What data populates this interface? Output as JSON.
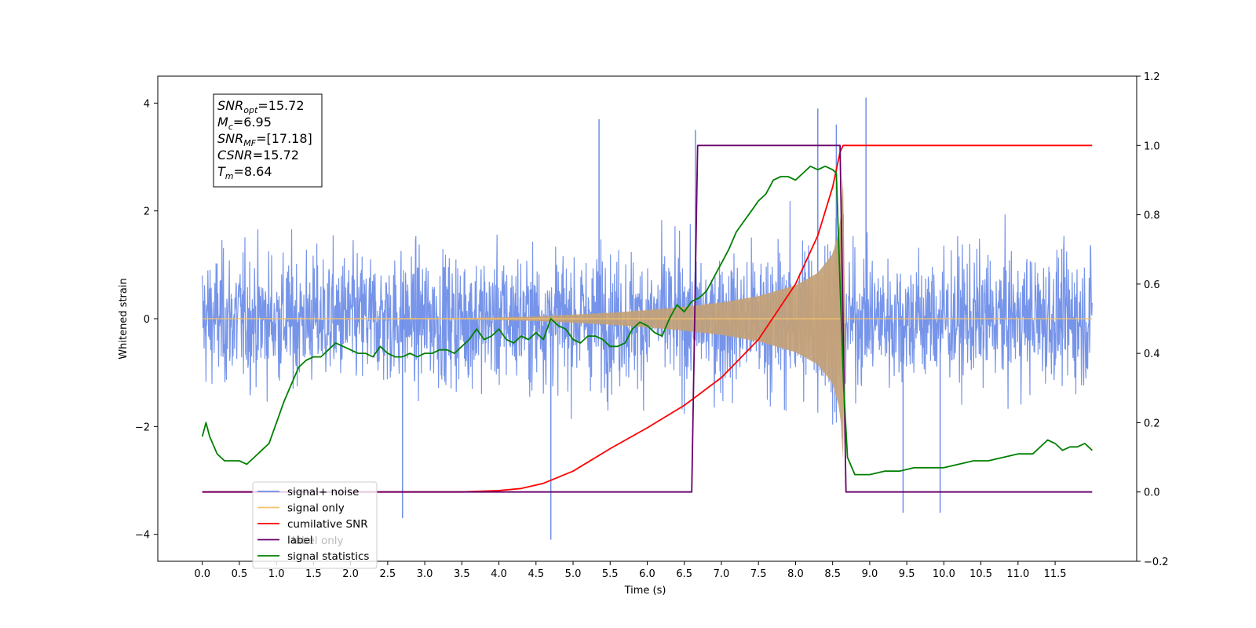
{
  "chart_data": {
    "type": "line",
    "title": "",
    "xlabel": "Time (s)",
    "ylabel": "Whitened strain",
    "ylabel_right": "",
    "xlim": [
      -0.6,
      12.6
    ],
    "ylim": [
      -4.5,
      4.5
    ],
    "ylim_right": [
      -0.2,
      1.2
    ],
    "grid": false,
    "x_ticks": [
      "0.0",
      "0.5",
      "1.0",
      "1.5",
      "2.0",
      "2.5",
      "3.0",
      "3.5",
      "4.0",
      "4.5",
      "5.0",
      "5.5",
      "6.0",
      "6.5",
      "7.0",
      "7.5",
      "8.0",
      "8.5",
      "9.0",
      "9.5",
      "10.0",
      "10.5",
      "11.0",
      "11.5"
    ],
    "y_ticks_left": [
      "−4",
      "−2",
      "0",
      "2",
      "4"
    ],
    "y_ticks_right": [
      "−0.2",
      "0.0",
      "0.2",
      "0.4",
      "0.6",
      "0.8",
      "1.0",
      "1.2"
    ],
    "stats_box": {
      "lines": [
        {
          "base": "SNR",
          "sub": "opt",
          "value": "=15.72"
        },
        {
          "base": "M",
          "sub": "c",
          "value": "=6.95"
        },
        {
          "base": "SNR",
          "sub": "MF",
          "value": "=[17.18]"
        },
        {
          "base": "CSNR",
          "sub": "",
          "value": "=15.72"
        },
        {
          "base": "T",
          "sub": "m",
          "value": "=8.64"
        }
      ]
    },
    "legend": {
      "placement": "lower-left",
      "entries": [
        {
          "label": "signal+ noise",
          "color": "#6f8ee8"
        },
        {
          "label": "signal only",
          "color": "#f5c26b"
        },
        {
          "label": "cumilative SNR",
          "color": "#ff0000"
        },
        {
          "label": "label",
          "color": "#6a006a"
        },
        {
          "label": "signal statistics",
          "color": "#008000"
        }
      ],
      "ghost_text": "label only"
    },
    "series": [
      {
        "name": "signal+ noise",
        "axis": "left",
        "color": "#6f8ee8",
        "x_range": [
          0,
          12
        ],
        "noise_band": [
          -2.6,
          2.6
        ],
        "extremes": [
          {
            "x": 2.7,
            "y": -3.7
          },
          {
            "x": 4.7,
            "y": -4.1
          },
          {
            "x": 5.35,
            "y": 3.7
          },
          {
            "x": 6.65,
            "y": 3.5
          },
          {
            "x": 8.3,
            "y": 3.9
          },
          {
            "x": 8.55,
            "y": 3.6
          },
          {
            "x": 8.95,
            "y": 4.1
          },
          {
            "x": 9.45,
            "y": -3.6
          },
          {
            "x": 9.95,
            "y": -3.6
          }
        ]
      },
      {
        "name": "signal only",
        "axis": "left",
        "color": "#f5c26b",
        "x": [
          0,
          3.5,
          4.5,
          5.5,
          6.0,
          6.5,
          7.0,
          7.5,
          8.0,
          8.3,
          8.5,
          8.6,
          8.64,
          8.66,
          12.0
        ],
        "amplitude": [
          0.0,
          0.01,
          0.04,
          0.11,
          0.16,
          0.22,
          0.3,
          0.42,
          0.62,
          0.85,
          1.2,
          1.7,
          2.6,
          0.0,
          0.0
        ]
      },
      {
        "name": "cumilative SNR",
        "axis": "right",
        "color": "#ff0000",
        "x": [
          0,
          3.5,
          4.0,
          4.3,
          4.6,
          5.0,
          5.5,
          6.0,
          6.5,
          7.0,
          7.5,
          8.0,
          8.3,
          8.5,
          8.6,
          8.64,
          8.66,
          12.0
        ],
        "y": [
          0.0,
          0.0,
          0.004,
          0.01,
          0.025,
          0.06,
          0.125,
          0.185,
          0.25,
          0.33,
          0.44,
          0.6,
          0.74,
          0.88,
          0.98,
          1.0,
          1.0,
          1.0
        ]
      },
      {
        "name": "label",
        "axis": "right",
        "color": "#6a006a",
        "x": [
          0,
          6.6,
          6.68,
          8.6,
          8.68,
          12.0
        ],
        "y": [
          0.0,
          0.0,
          1.0,
          1.0,
          0.0,
          0.0
        ]
      },
      {
        "name": "signal statistics",
        "axis": "right",
        "color": "#008000",
        "x": [
          0.0,
          0.05,
          0.1,
          0.2,
          0.3,
          0.4,
          0.5,
          0.6,
          0.7,
          0.8,
          0.9,
          1.0,
          1.1,
          1.2,
          1.3,
          1.4,
          1.5,
          1.6,
          1.7,
          1.8,
          1.9,
          2.0,
          2.1,
          2.2,
          2.3,
          2.4,
          2.5,
          2.6,
          2.7,
          2.8,
          2.9,
          3.0,
          3.1,
          3.2,
          3.3,
          3.4,
          3.5,
          3.6,
          3.7,
          3.8,
          3.9,
          4.0,
          4.1,
          4.2,
          4.3,
          4.4,
          4.5,
          4.6,
          4.7,
          4.8,
          4.9,
          5.0,
          5.1,
          5.2,
          5.3,
          5.4,
          5.5,
          5.6,
          5.7,
          5.8,
          5.9,
          6.0,
          6.1,
          6.2,
          6.3,
          6.4,
          6.5,
          6.6,
          6.7,
          6.8,
          6.9,
          7.0,
          7.1,
          7.2,
          7.3,
          7.4,
          7.5,
          7.6,
          7.7,
          7.8,
          7.9,
          8.0,
          8.1,
          8.2,
          8.3,
          8.4,
          8.5,
          8.55,
          8.6,
          8.65,
          8.7,
          8.8,
          8.9,
          9.0,
          9.2,
          9.4,
          9.6,
          9.8,
          10.0,
          10.2,
          10.4,
          10.6,
          10.8,
          11.0,
          11.2,
          11.4,
          11.5,
          11.6,
          11.7,
          11.8,
          11.9,
          12.0
        ],
        "y": [
          0.16,
          0.2,
          0.16,
          0.11,
          0.09,
          0.09,
          0.09,
          0.08,
          0.1,
          0.12,
          0.14,
          0.2,
          0.26,
          0.31,
          0.36,
          0.38,
          0.39,
          0.39,
          0.41,
          0.43,
          0.42,
          0.41,
          0.4,
          0.4,
          0.39,
          0.42,
          0.4,
          0.39,
          0.39,
          0.4,
          0.39,
          0.4,
          0.4,
          0.41,
          0.41,
          0.4,
          0.42,
          0.44,
          0.47,
          0.44,
          0.45,
          0.47,
          0.44,
          0.43,
          0.45,
          0.44,
          0.46,
          0.44,
          0.5,
          0.48,
          0.47,
          0.44,
          0.43,
          0.45,
          0.45,
          0.44,
          0.42,
          0.42,
          0.43,
          0.47,
          0.49,
          0.48,
          0.46,
          0.45,
          0.5,
          0.54,
          0.52,
          0.55,
          0.56,
          0.58,
          0.62,
          0.66,
          0.7,
          0.75,
          0.78,
          0.81,
          0.84,
          0.86,
          0.9,
          0.91,
          0.91,
          0.9,
          0.92,
          0.94,
          0.93,
          0.94,
          0.93,
          0.92,
          0.6,
          0.3,
          0.1,
          0.05,
          0.05,
          0.05,
          0.06,
          0.06,
          0.07,
          0.07,
          0.07,
          0.08,
          0.09,
          0.09,
          0.1,
          0.11,
          0.11,
          0.15,
          0.14,
          0.12,
          0.13,
          0.13,
          0.14,
          0.12
        ]
      }
    ]
  }
}
